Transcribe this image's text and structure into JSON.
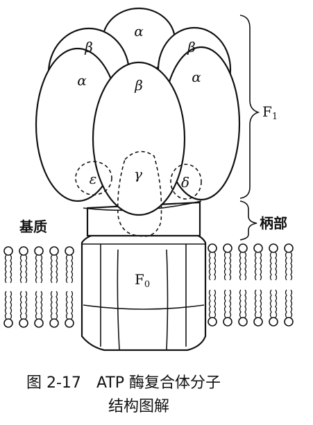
{
  "diagram": {
    "subunits": {
      "alpha_top": "α",
      "beta_left": "β",
      "beta_right": "β",
      "alpha_left": "α",
      "beta_center": "β",
      "alpha_right": "α",
      "epsilon": "ε",
      "gamma": "γ",
      "delta": "δ"
    },
    "labels": {
      "f1_main": "F",
      "f1_sub": "1",
      "stalk": "柄部",
      "matrix": "基质",
      "f0_main": "F",
      "f0_sub": "0"
    }
  },
  "caption": {
    "figure_number": "图 2-17",
    "title_line1": "ATP 酶复合体分子",
    "title_line2": "结构图解"
  }
}
